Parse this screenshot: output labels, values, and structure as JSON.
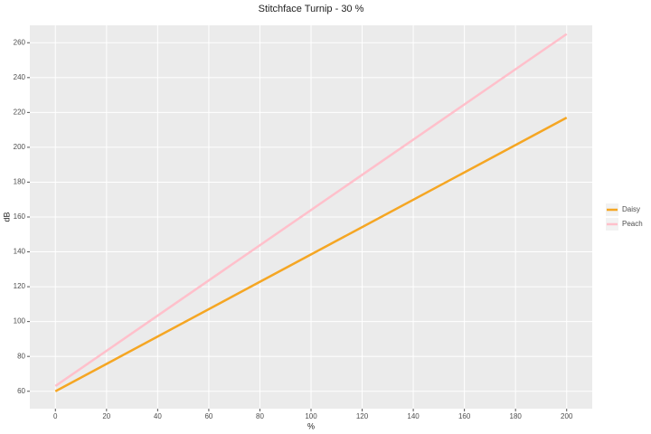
{
  "chart_data": {
    "type": "line",
    "title": "Stitchface Turnip -  30 %",
    "x_label": "%",
    "y_label": "dB",
    "x": [
      0,
      200
    ],
    "series": [
      {
        "name": "Daisy",
        "color": "#f5a623",
        "values": [
          60,
          217
        ]
      },
      {
        "name": "Peach",
        "color": "#ffc0cb",
        "values": [
          63,
          265
        ]
      }
    ],
    "xlim": [
      -10,
      210
    ],
    "xticks": [
      0,
      20,
      40,
      60,
      80,
      100,
      120,
      140,
      160,
      180,
      200
    ],
    "ylim": [
      50,
      270
    ],
    "yticks": [
      60,
      80,
      100,
      120,
      140,
      160,
      180,
      200,
      220,
      240,
      260
    ],
    "grid": true,
    "legend": "right"
  }
}
